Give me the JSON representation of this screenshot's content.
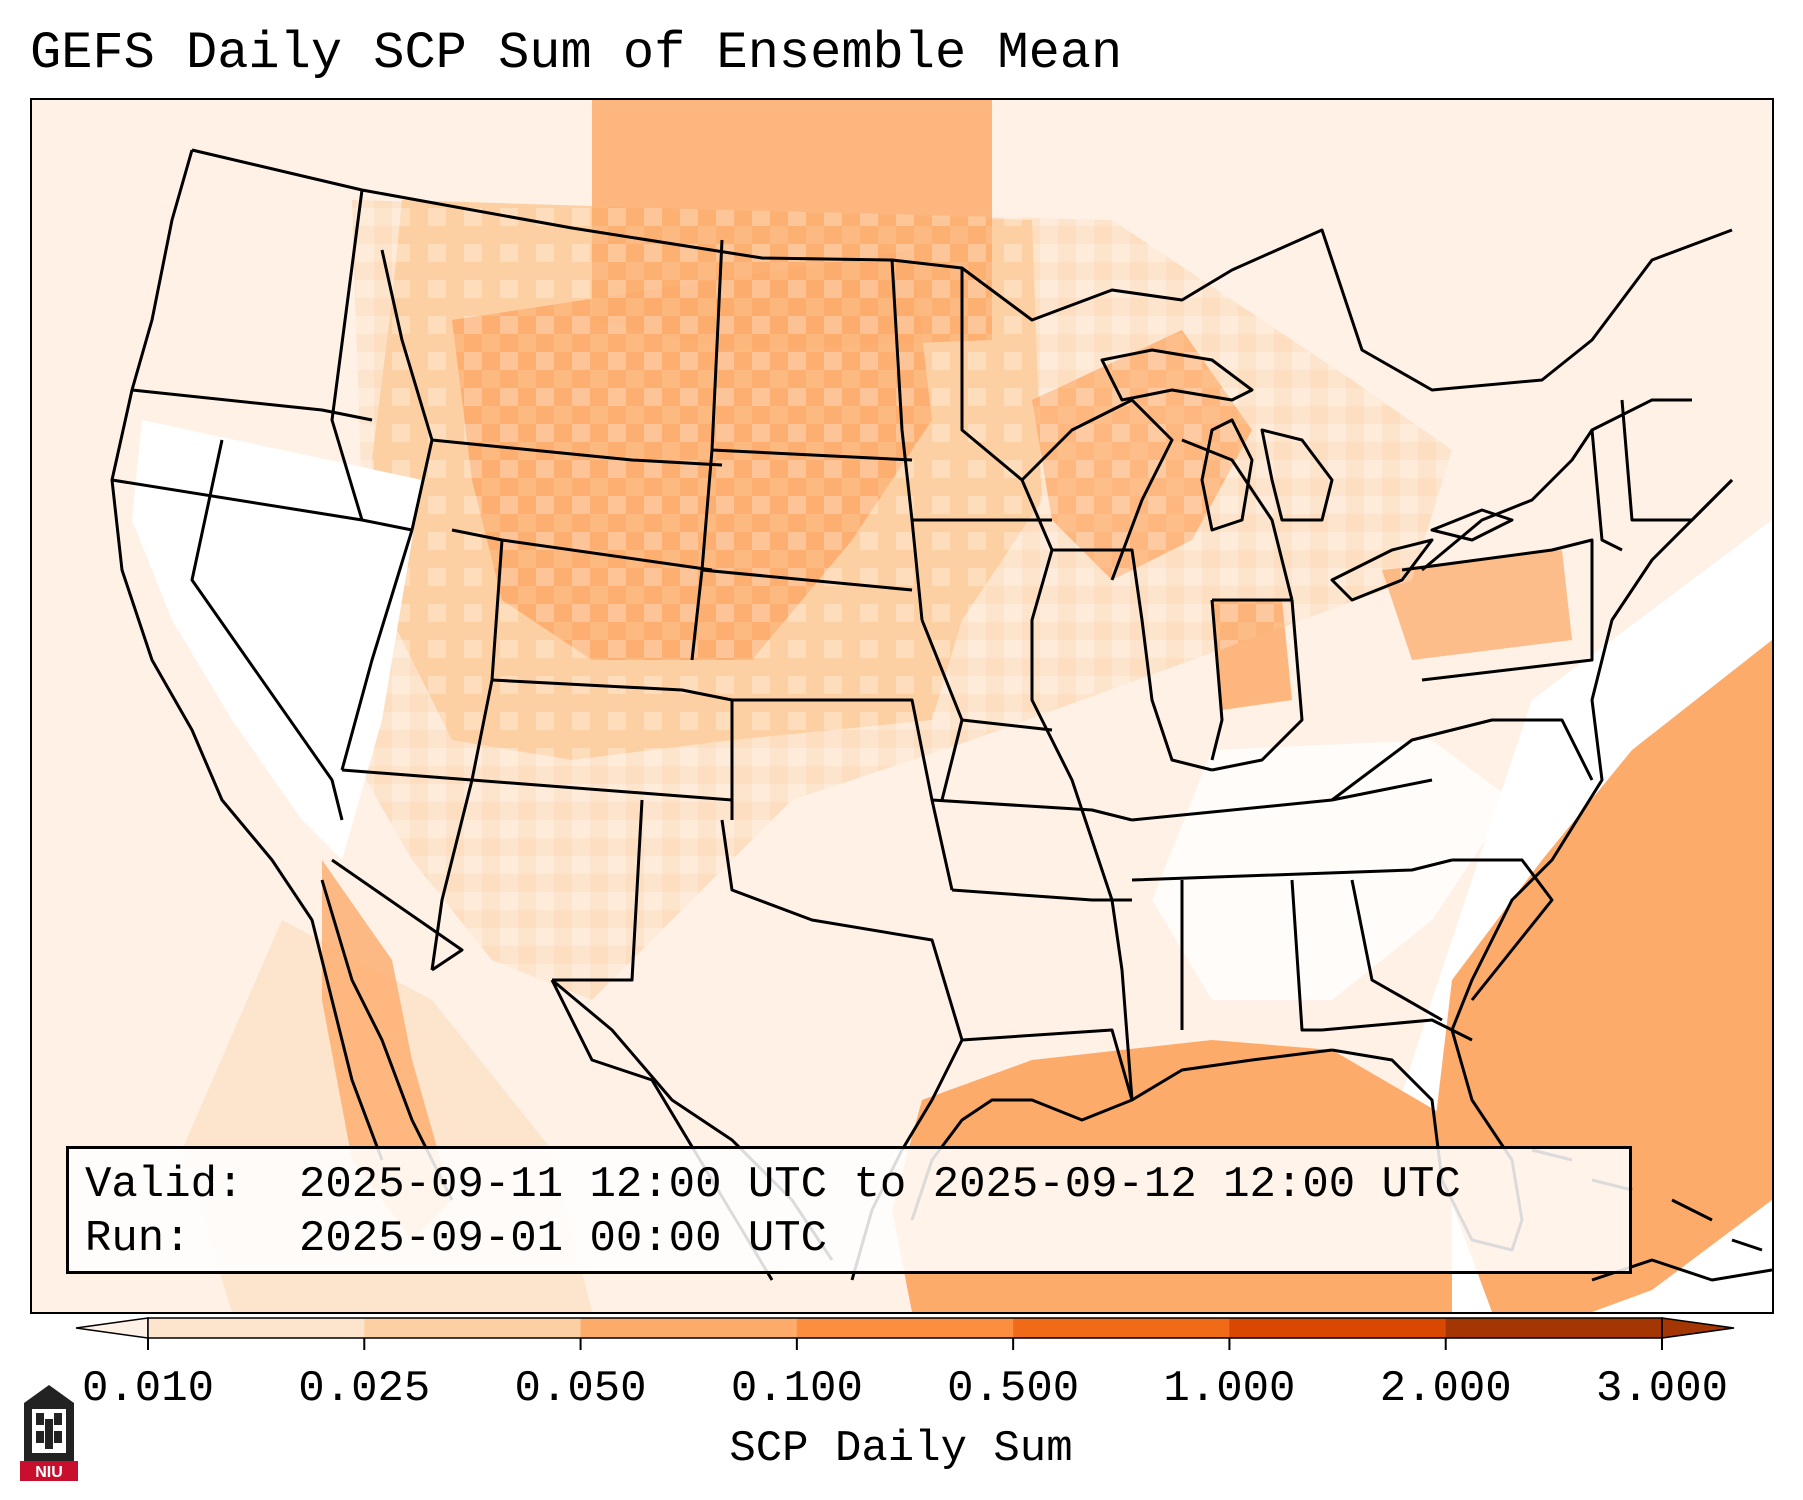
{
  "title": "GEFS Daily SCP Sum of Ensemble Mean",
  "info": {
    "valid_label": "Valid:",
    "valid_value": "2025-09-11 12:00 UTC to 2025-09-12 12:00 UTC",
    "run_label": "Run:",
    "run_value": "2025-09-01 00:00 UTC"
  },
  "colorbar": {
    "label": "SCP Daily Sum",
    "ticks": [
      "0.010",
      "0.025",
      "0.050",
      "0.100",
      "0.500",
      "1.000",
      "2.000",
      "3.000"
    ],
    "colors": [
      "#fff1e6",
      "#fde4cc",
      "#fdd0a4",
      "#fcab6b",
      "#fb8f3f",
      "#f06a17",
      "#d94801",
      "#a33603"
    ],
    "extend": "both"
  },
  "logo": {
    "text": "NIU"
  },
  "colors": {
    "land_light": "#fff5ec",
    "low": "#fde4cc",
    "mid": "#fdd0a4",
    "high": "#fcab6b",
    "border": "#000000"
  }
}
